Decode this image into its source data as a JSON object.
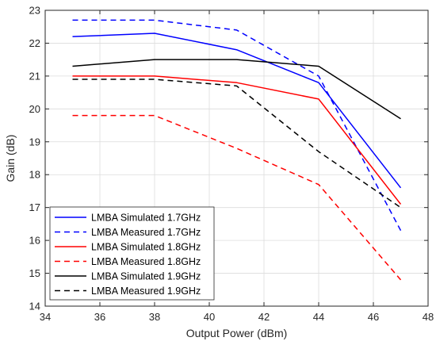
{
  "chart_data": {
    "type": "line",
    "xlabel": "Output Power (dBm)",
    "ylabel": "Gain (dB)",
    "xlim": [
      34,
      48
    ],
    "ylim": [
      14,
      23
    ],
    "xticks": [
      34,
      36,
      38,
      40,
      42,
      44,
      46,
      48
    ],
    "yticks": [
      14,
      15,
      16,
      17,
      18,
      19,
      20,
      21,
      22,
      23
    ],
    "grid": true,
    "legend_position": "bottom-left",
    "series": [
      {
        "name": "LMBA Simulated 1.7GHz",
        "color": "#0000ff",
        "style": "solid",
        "x": [
          35,
          38,
          41,
          44,
          47
        ],
        "y": [
          22.2,
          22.3,
          21.8,
          20.8,
          17.6
        ]
      },
      {
        "name": "LMBA Measured 1.7GHz",
        "color": "#0000ff",
        "style": "dashed",
        "x": [
          35,
          38,
          41,
          44,
          47
        ],
        "y": [
          22.7,
          22.7,
          22.4,
          21.0,
          16.3
        ]
      },
      {
        "name": "LMBA Simulated 1.8GHz",
        "color": "#ff0000",
        "style": "solid",
        "x": [
          35,
          38,
          41,
          44,
          47
        ],
        "y": [
          21.0,
          21.0,
          20.8,
          20.3,
          17.1
        ]
      },
      {
        "name": "LMBA Measured 1.8GHz",
        "color": "#ff0000",
        "style": "dashed",
        "x": [
          35,
          38,
          41,
          44,
          47
        ],
        "y": [
          19.8,
          19.8,
          18.8,
          17.7,
          14.8
        ]
      },
      {
        "name": "LMBA Simulated 1.9GHz",
        "color": "#000000",
        "style": "solid",
        "x": [
          35,
          38,
          41,
          44,
          47
        ],
        "y": [
          21.3,
          21.5,
          21.5,
          21.3,
          19.7
        ]
      },
      {
        "name": "LMBA Measured 1.9GHz",
        "color": "#000000",
        "style": "dashed",
        "x": [
          35,
          38,
          41,
          44,
          47
        ],
        "y": [
          20.9,
          20.9,
          20.7,
          18.7,
          17.0
        ]
      }
    ]
  }
}
